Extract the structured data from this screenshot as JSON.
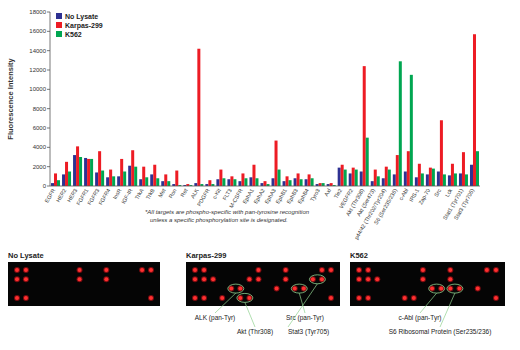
{
  "chart_data": {
    "type": "bar",
    "y_label": "Fluorescence Intensity",
    "annotation": "*All targets are phospho-specific with pan-tyrosine recognition unless a specific phosphorylation site is designated.",
    "categories": [
      "EGFR",
      "HER2",
      "HER3",
      "FGFR1",
      "FGFR3",
      "FGFR4",
      "InsR",
      "IGF-IR",
      "TrkA",
      "TrkB",
      "Met",
      "Ron",
      "Ret",
      "ALK",
      "PDGFR",
      "c-Kit",
      "FLT3",
      "M-CSFR",
      "EphA1",
      "EphA2",
      "EphA3",
      "EphB1",
      "EphB3",
      "EphB4",
      "Tyro3",
      "Axl",
      "Tie2",
      "VEGFR2",
      "Akt (Thr308)",
      "Akt (Ser473)",
      "p44/42 (Thr202/Tyr204)",
      "S6 (Ser235/236)",
      "c-Abl",
      "IRS-1",
      "Zap-70",
      "Src",
      "Lck",
      "Stat1 (Tyr701)",
      "Stat3 (Tyr705)"
    ],
    "series": [
      {
        "name": "No Lysate",
        "color": "#2e3192",
        "values": [
          300,
          1200,
          3200,
          2900,
          1400,
          900,
          1000,
          2100,
          700,
          1200,
          500,
          200,
          100,
          300,
          200,
          700,
          700,
          500,
          900,
          300,
          800,
          500,
          800,
          700,
          200,
          200,
          1900,
          1300,
          1500,
          500,
          800,
          1200,
          1500,
          900,
          1200,
          1500,
          1100,
          1300,
          2200
        ]
      },
      {
        "name": "Karpas-299",
        "color": "#ed1c24",
        "values": [
          1300,
          2500,
          4100,
          2800,
          3600,
          1700,
          2800,
          3700,
          2000,
          2200,
          1200,
          1600,
          200,
          14200,
          600,
          1700,
          1000,
          1300,
          2200,
          500,
          4700,
          1000,
          1300,
          1200,
          300,
          300,
          2200,
          1900,
          12400,
          1700,
          2000,
          3200,
          3600,
          2300,
          1900,
          6800,
          2300,
          3500,
          15700
        ]
      },
      {
        "name": "K562",
        "color": "#00a651",
        "values": [
          600,
          1500,
          3000,
          2800,
          1600,
          1000,
          1500,
          2000,
          900,
          800,
          500,
          100,
          100,
          200,
          200,
          800,
          700,
          800,
          800,
          200,
          1700,
          600,
          700,
          800,
          300,
          100,
          1700,
          1700,
          5000,
          1000,
          1700,
          12900,
          11500,
          1300,
          1800,
          1200,
          1300,
          1200,
          3600
        ]
      }
    ],
    "ylim": [
      0,
      18000
    ],
    "yticks": [
      0,
      2000,
      4000,
      6000,
      8000,
      10000,
      12000,
      14000,
      16000,
      18000
    ],
    "grid": false,
    "legend": "upper left"
  },
  "arrays": [
    {
      "title": "No Lysate"
    },
    {
      "title": "Karpas-299",
      "labels": [
        "ALK (pan-Tyr)",
        "Akt (Thr308)",
        "Src (pan-Tyr)",
        "Stat3 (Tyr705)"
      ]
    },
    {
      "title": "K562",
      "labels": [
        "c-Abl (pan-Tyr)",
        "S6 Ribosomal Protein (Ser235/236)"
      ]
    }
  ]
}
